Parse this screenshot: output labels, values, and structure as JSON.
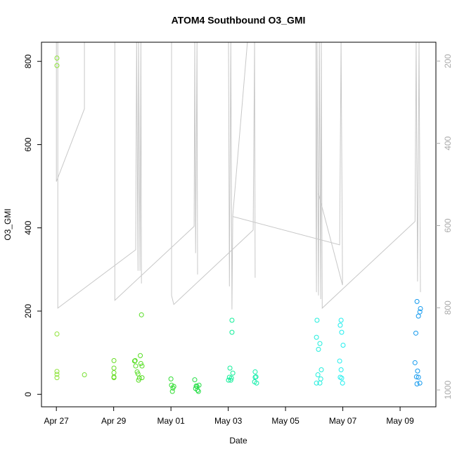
{
  "chart_data": {
    "type": "scatter",
    "title": "ATOM4 Southbound O3_GMI",
    "x_label": "Date",
    "y_label": "O3_GMI",
    "xlim": [
      -0.52,
      13.25
    ],
    "xticks": [
      {
        "value": 0,
        "label": "Apr 27"
      },
      {
        "value": 2,
        "label": "Apr 29"
      },
      {
        "value": 4,
        "label": "May 01"
      },
      {
        "value": 6,
        "label": "May 03"
      },
      {
        "value": 8,
        "label": "May 05"
      },
      {
        "value": 10,
        "label": "May 07"
      },
      {
        "value": 12,
        "label": "May 09"
      }
    ],
    "ylim": [
      -30,
      846
    ],
    "yticks": [
      0,
      200,
      400,
      600,
      800
    ],
    "y2lim": [
      1041,
      154
    ],
    "y2ticks": [
      200,
      400,
      600,
      800,
      1000
    ],
    "y2_tick_color": "#aaaaaa",
    "series": [
      {
        "type": "scatter",
        "x": [
          0.02,
          0.02,
          0.02,
          0.02,
          0.02,
          0.02,
          0.98,
          2.01,
          2.01,
          2.01,
          2.01,
          2.01,
          2.75,
          2.73,
          2.77,
          2.82,
          2.85,
          2.9,
          2.95,
          2.93,
          2.99,
          2.97,
          2.87,
          2.99,
          4.0,
          4.02,
          4.07,
          4.05,
          4.1,
          4.83,
          4.86,
          4.91,
          4.93,
          4.98,
          4.96,
          4.88,
          6.06,
          6.13,
          6.13,
          6.04,
          6.09,
          6.01,
          6.16,
          6.11,
          6.94,
          6.94,
          6.92,
          6.99,
          6.97,
          9.1,
          9.08,
          9.2,
          9.15,
          9.13,
          9.25,
          9.08,
          9.2,
          9.23,
          9.94,
          9.91,
          9.96,
          10.01,
          9.89,
          9.94,
          9.91,
          9.99,
          9.96,
          12.59,
          12.71,
          12.69,
          12.64,
          12.55,
          12.52,
          12.61,
          12.57,
          12.59,
          12.69,
          12.64
        ],
        "values": [
          808,
          790,
          145,
          55,
          48,
          40,
          47,
          81,
          63,
          52,
          42,
          40,
          81,
          80,
          68,
          54,
          49,
          39,
          74,
          93,
          68,
          191,
          34,
          40,
          37,
          22,
          15,
          7,
          19,
          35,
          14,
          19,
          10,
          22,
          7,
          20,
          63,
          178,
          149,
          41,
          34,
          34,
          51,
          39,
          54,
          41,
          30,
          27,
          42,
          178,
          137,
          122,
          108,
          47,
          59,
          27,
          27,
          37,
          178,
          166,
          149,
          118,
          80,
          59,
          41,
          27,
          39,
          223,
          206,
          198,
          188,
          147,
          76,
          56,
          42,
          25,
          27,
          41
        ],
        "colors": [
          "#8fe33b",
          "#8fe33b",
          "#8fe33b",
          "#8fe33b",
          "#8fe33b",
          "#8fe33b",
          "#77e033",
          "#66dd22",
          "#66dd22",
          "#66dd22",
          "#66dd22",
          "#66dd22",
          "#55dd22",
          "#55dd22",
          "#55dd22",
          "#55dd22",
          "#55dd22",
          "#55dd22",
          "#55dd22",
          "#55dd22",
          "#55dd22",
          "#55dd22",
          "#55dd22",
          "#55dd22",
          "#33dd33",
          "#33dd33",
          "#33dd33",
          "#33dd33",
          "#33dd33",
          "#22dd44",
          "#22dd44",
          "#22dd44",
          "#22dd44",
          "#22dd44",
          "#22dd44",
          "#22dd44",
          "#11ee99",
          "#11ee99",
          "#11ee99",
          "#11ee99",
          "#11ee99",
          "#11ee99",
          "#11ee99",
          "#11ee99",
          "#11eeaa",
          "#11eeaa",
          "#11eeaa",
          "#11eeaa",
          "#11eeaa",
          "#22eedd",
          "#22eedd",
          "#22eedd",
          "#22eedd",
          "#22eedd",
          "#22eedd",
          "#22eedd",
          "#22eedd",
          "#22eedd",
          "#22eeee",
          "#22eeee",
          "#22eeee",
          "#22eeee",
          "#22eeee",
          "#22eeee",
          "#22eeee",
          "#22eeee",
          "#22eeee",
          "#1199ee",
          "#1199ee",
          "#1199ee",
          "#1199ee",
          "#1199ee",
          "#1199ee",
          "#1199ee",
          "#1199ee",
          "#1199ee",
          "#1199ee",
          "#1199ee"
        ]
      },
      {
        "type": "line",
        "axis": "y2",
        "color": "#c8c8c8",
        "x": [
          0,
          0,
          0.98,
          0.98,
          null,
          0.05,
          0.05,
          2.77,
          2.8,
          2.85,
          2.87,
          2.92,
          2.95,
          2.97,
          null,
          2.04,
          2.04,
          4.81,
          4.83,
          4.86,
          4.91,
          4.93,
          null,
          4.02,
          4.02,
          4.1,
          6.87,
          6.92,
          6.94,
          null,
          6.01,
          6.04,
          6.06,
          6.09,
          6.13,
          6.16,
          6.67,
          null,
          6.16,
          9.89,
          9.94,
          9.99,
          null,
          9.06,
          9.06,
          9.08,
          9.1,
          9.15,
          9.18,
          9.23,
          9.25,
          9.28,
          12.52,
          12.56,
          12.61,
          12.66,
          12.71,
          null,
          9.15,
          9.99
        ],
        "values": [
          154,
          493,
          316,
          154,
          null,
          154,
          801,
          659,
          154,
          710,
          154,
          710,
          154,
          741,
          null,
          154,
          782,
          602,
          154,
          667,
          154,
          719,
          null,
          154,
          770,
          792,
          611,
          154,
          727,
          null,
          154,
          748,
          496,
          154,
          804,
          575,
          154,
          null,
          578,
          647,
          154,
          745,
          null,
          154,
          476,
          762,
          154,
          770,
          154,
          779,
          154,
          801,
          590,
          154,
          736,
          154,
          762,
          null,
          522,
          745
        ]
      }
    ]
  }
}
